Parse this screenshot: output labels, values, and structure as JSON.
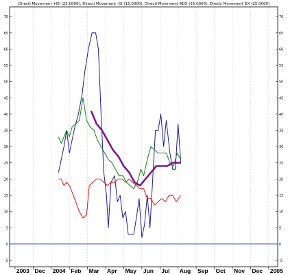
{
  "chart_data": {
    "type": "line",
    "title": "Directi Movement +DI (25.0000); Directi Movement -DI (15.0000); Directi Movement ADX (25.0000); Directi Movement DX (25.0000)",
    "xlabel": "",
    "ylabel": "",
    "ylim": [
      -7,
      73
    ],
    "y_ticks": [
      -5,
      0,
      5,
      10,
      15,
      20,
      25,
      30,
      35,
      40,
      45,
      50,
      55,
      60,
      65,
      70
    ],
    "x_ticks": [
      "2003",
      "Dec",
      "2004",
      "Feb",
      "Mar",
      "Apr",
      "May",
      "Jun",
      "Jul",
      "Aug",
      "Sep",
      "Oct",
      "Nov",
      "Dec",
      "2005"
    ],
    "x_tick_pos": [
      0,
      1,
      2,
      3,
      4,
      5,
      6,
      7,
      8,
      9,
      10,
      11,
      12,
      13,
      14
    ],
    "xlim": [
      -0.3,
      14.5
    ],
    "reference_line": {
      "value": 0,
      "color": "#3050d0"
    },
    "grid": true,
    "series": [
      {
        "color": "#1c1c8c",
        "width": 1,
        "points": [
          [
            2.4,
            22
          ],
          [
            2.55,
            26
          ],
          [
            2.7,
            30
          ],
          [
            2.85,
            35
          ],
          [
            3.0,
            28
          ],
          [
            3.15,
            32
          ],
          [
            3.3,
            36
          ],
          [
            3.5,
            40
          ],
          [
            3.7,
            46
          ],
          [
            3.85,
            53
          ],
          [
            4.05,
            60
          ],
          [
            4.25,
            65
          ],
          [
            4.45,
            65
          ],
          [
            4.6,
            60
          ],
          [
            4.75,
            40
          ],
          [
            4.9,
            22
          ],
          [
            5.05,
            15
          ],
          [
            5.15,
            5
          ],
          [
            5.3,
            19
          ],
          [
            5.5,
            21
          ],
          [
            5.65,
            13
          ],
          [
            5.8,
            15
          ],
          [
            5.95,
            8
          ],
          [
            6.1,
            10
          ],
          [
            6.25,
            3
          ],
          [
            6.4,
            3
          ],
          [
            6.55,
            3
          ],
          [
            6.7,
            8
          ],
          [
            6.85,
            14
          ],
          [
            7.0,
            2
          ],
          [
            7.15,
            6
          ],
          [
            7.3,
            15
          ],
          [
            7.45,
            5
          ],
          [
            7.6,
            20
          ],
          [
            7.75,
            35
          ],
          [
            7.9,
            35
          ],
          [
            8.05,
            40
          ],
          [
            8.2,
            30
          ],
          [
            8.35,
            38
          ],
          [
            8.55,
            28
          ],
          [
            8.7,
            23
          ],
          [
            8.85,
            23
          ],
          [
            9.0,
            37
          ],
          [
            9.15,
            25
          ]
        ]
      },
      {
        "color": "#108010",
        "width": 1,
        "points": [
          [
            2.4,
            33
          ],
          [
            2.55,
            31
          ],
          [
            2.7,
            33
          ],
          [
            2.85,
            35
          ],
          [
            3.0,
            33
          ],
          [
            3.15,
            36
          ],
          [
            3.35,
            37
          ],
          [
            3.55,
            38
          ],
          [
            3.75,
            45
          ],
          [
            3.95,
            38
          ],
          [
            4.15,
            36
          ],
          [
            4.35,
            35
          ],
          [
            4.55,
            32
          ],
          [
            4.75,
            30
          ],
          [
            4.95,
            28
          ],
          [
            5.15,
            26
          ],
          [
            5.35,
            25
          ],
          [
            5.55,
            23
          ],
          [
            5.75,
            21
          ],
          [
            5.95,
            21
          ],
          [
            6.15,
            19
          ],
          [
            6.35,
            18
          ],
          [
            6.55,
            17
          ],
          [
            6.75,
            19
          ],
          [
            6.95,
            23
          ],
          [
            7.1,
            21
          ],
          [
            7.3,
            26
          ],
          [
            7.5,
            30
          ],
          [
            7.7,
            29
          ],
          [
            7.9,
            28
          ],
          [
            8.15,
            28
          ],
          [
            8.35,
            28
          ],
          [
            8.55,
            25
          ],
          [
            8.75,
            24
          ],
          [
            8.95,
            28
          ],
          [
            9.15,
            26
          ]
        ]
      },
      {
        "color": "#e01010",
        "width": 1,
        "points": [
          [
            2.4,
            20
          ],
          [
            2.55,
            20
          ],
          [
            2.7,
            18
          ],
          [
            2.85,
            19
          ],
          [
            3.0,
            18
          ],
          [
            3.15,
            16
          ],
          [
            3.35,
            13
          ],
          [
            3.55,
            10
          ],
          [
            3.75,
            8
          ],
          [
            3.95,
            9
          ],
          [
            4.1,
            18
          ],
          [
            4.3,
            19
          ],
          [
            4.5,
            20
          ],
          [
            4.7,
            20
          ],
          [
            4.9,
            19
          ],
          [
            5.1,
            18
          ],
          [
            5.3,
            19
          ],
          [
            5.5,
            19
          ],
          [
            5.7,
            20
          ],
          [
            5.9,
            20
          ],
          [
            6.1,
            19
          ],
          [
            6.3,
            20
          ],
          [
            6.5,
            19
          ],
          [
            6.7,
            18
          ],
          [
            6.9,
            17
          ],
          [
            7.1,
            17
          ],
          [
            7.3,
            14
          ],
          [
            7.5,
            14
          ],
          [
            7.7,
            12
          ],
          [
            7.9,
            13
          ],
          [
            8.1,
            14
          ],
          [
            8.3,
            13
          ],
          [
            8.5,
            15
          ],
          [
            8.7,
            15
          ],
          [
            8.9,
            13
          ],
          [
            9.15,
            15
          ]
        ]
      },
      {
        "color": "#7a1a8a",
        "width": 2.6,
        "points": [
          [
            4.2,
            41
          ],
          [
            4.5,
            37
          ],
          [
            4.8,
            35
          ],
          [
            5.1,
            32
          ],
          [
            5.4,
            29
          ],
          [
            5.7,
            27
          ],
          [
            6.0,
            24
          ],
          [
            6.3,
            22
          ],
          [
            6.6,
            19
          ],
          [
            6.9,
            18
          ],
          [
            7.2,
            20
          ],
          [
            7.5,
            22
          ],
          [
            7.8,
            24
          ],
          [
            8.1,
            24
          ],
          [
            8.4,
            24
          ],
          [
            8.7,
            25
          ],
          [
            9.15,
            25
          ]
        ]
      }
    ]
  }
}
